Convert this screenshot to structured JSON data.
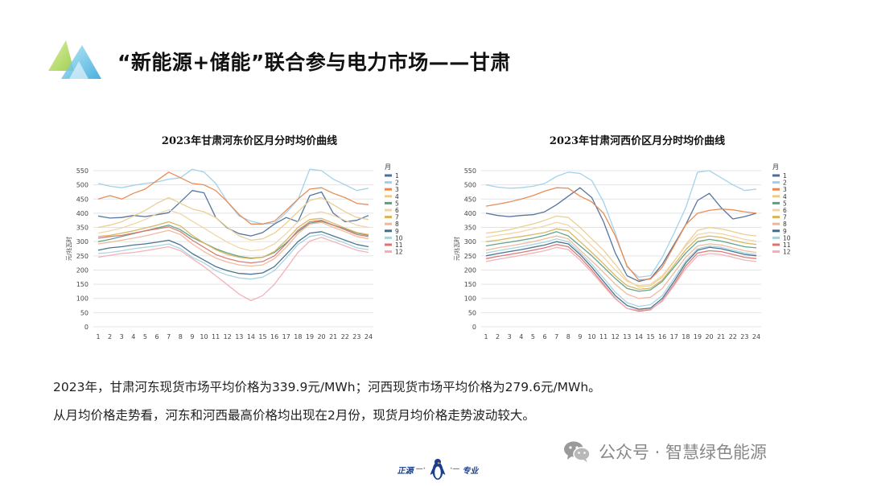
{
  "title": "“新能源+储能”联合参与电力市场——甘肃",
  "colors": {
    "logo_green": "#b6d96a",
    "logo_blue": "#4fb5e0",
    "logo_cyan": "#8fd4ee",
    "brand_blue": "#1a3f8c",
    "grid": "#e4e4e4"
  },
  "legend_title": "月",
  "series_colors": [
    "#4e6e9a",
    "#9fd0e8",
    "#e8874f",
    "#e9cd8c",
    "#5a9e86",
    "#f1d3a4",
    "#d9b35a",
    "#efb79a",
    "#3f6f8c",
    "#a7d3db",
    "#d8766f",
    "#f2aeb5"
  ],
  "summary": {
    "line1": "2023年，甘肃河东现货市场平均价格为339.9元/MWh；河西现货市场平均价格为279.6元/MWh。",
    "line2": "从月均价格走势看，河东和河西最高价格均出现在2月份，现货月均价格走势波动较大。"
  },
  "watermark": {
    "text": "公众号 · 智慧绿色能源",
    "icon": "wechat-icon"
  },
  "footer": {
    "left": "正源",
    "right": "专业",
    "icon": "penguin-icon"
  },
  "chart_data": [
    {
      "type": "line",
      "title": "2023年甘肃河东价区月分时均价曲线",
      "ylabel": "元/兆瓦时",
      "xlabel": "",
      "x": [
        1,
        2,
        3,
        4,
        5,
        6,
        7,
        8,
        9,
        10,
        11,
        12,
        13,
        14,
        15,
        16,
        17,
        18,
        19,
        20,
        21,
        22,
        23,
        24
      ],
      "ylim": [
        0,
        550
      ],
      "yticks": [
        0,
        50,
        100,
        150,
        200,
        250,
        300,
        350,
        400,
        450,
        500,
        550
      ],
      "grid": true,
      "legend_position": "right",
      "series": [
        {
          "name": "1",
          "values": [
            390,
            383,
            385,
            392,
            388,
            395,
            402,
            440,
            480,
            472,
            385,
            348,
            328,
            320,
            332,
            362,
            385,
            370,
            462,
            475,
            400,
            370,
            375,
            392
          ]
        },
        {
          "name": "2",
          "values": [
            505,
            495,
            490,
            498,
            505,
            510,
            520,
            525,
            555,
            545,
            505,
            440,
            390,
            372,
            362,
            365,
            402,
            448,
            555,
            550,
            520,
            500,
            480,
            488
          ]
        },
        {
          "name": "3",
          "values": [
            450,
            462,
            450,
            470,
            485,
            515,
            545,
            525,
            505,
            500,
            480,
            440,
            395,
            362,
            362,
            372,
            410,
            450,
            485,
            490,
            470,
            455,
            435,
            430
          ]
        },
        {
          "name": "4",
          "values": [
            350,
            358,
            370,
            390,
            410,
            435,
            455,
            435,
            415,
            405,
            385,
            350,
            320,
            305,
            310,
            330,
            365,
            405,
            445,
            455,
            430,
            405,
            385,
            378
          ]
        },
        {
          "name": "5",
          "values": [
            300,
            308,
            318,
            328,
            338,
            348,
            358,
            342,
            315,
            295,
            275,
            260,
            248,
            242,
            245,
            262,
            295,
            335,
            365,
            372,
            358,
            345,
            330,
            322
          ]
        },
        {
          "name": "6",
          "values": [
            330,
            338,
            348,
            362,
            378,
            398,
            412,
            398,
            372,
            348,
            322,
            298,
            278,
            268,
            272,
            292,
            328,
            370,
            398,
            405,
            392,
            375,
            358,
            350
          ]
        },
        {
          "name": "7",
          "values": [
            318,
            322,
            330,
            338,
            348,
            358,
            370,
            355,
            322,
            295,
            272,
            255,
            245,
            240,
            245,
            265,
            305,
            350,
            378,
            382,
            365,
            348,
            332,
            325
          ]
        },
        {
          "name": "8",
          "values": [
            292,
            298,
            305,
            312,
            320,
            330,
            340,
            325,
            292,
            265,
            242,
            228,
            218,
            214,
            218,
            240,
            280,
            328,
            362,
            368,
            350,
            335,
            318,
            310
          ]
        },
        {
          "name": "9",
          "values": [
            270,
            278,
            282,
            288,
            292,
            298,
            305,
            288,
            258,
            235,
            212,
            198,
            188,
            185,
            190,
            212,
            255,
            300,
            330,
            335,
            320,
            305,
            290,
            282
          ]
        },
        {
          "name": "10",
          "values": [
            258,
            262,
            268,
            275,
            280,
            285,
            292,
            275,
            245,
            225,
            198,
            182,
            172,
            168,
            175,
            198,
            242,
            290,
            318,
            325,
            310,
            295,
            278,
            272
          ]
        },
        {
          "name": "11",
          "values": [
            312,
            318,
            322,
            330,
            338,
            345,
            352,
            335,
            305,
            280,
            255,
            240,
            230,
            225,
            230,
            250,
            292,
            340,
            370,
            375,
            358,
            342,
            325,
            318
          ]
        },
        {
          "name": "12",
          "values": [
            245,
            252,
            258,
            262,
            268,
            275,
            282,
            268,
            240,
            212,
            180,
            148,
            115,
            92,
            110,
            150,
            205,
            262,
            302,
            315,
            300,
            285,
            270,
            262
          ]
        }
      ]
    },
    {
      "type": "line",
      "title": "2023年甘肃河西价区月分时均价曲线",
      "ylabel": "元/兆瓦时",
      "xlabel": "",
      "x": [
        1,
        2,
        3,
        4,
        5,
        6,
        7,
        8,
        9,
        10,
        11,
        12,
        13,
        14,
        15,
        16,
        17,
        18,
        19,
        20,
        21,
        22,
        23,
        24
      ],
      "ylim": [
        0,
        550
      ],
      "yticks": [
        0,
        50,
        100,
        150,
        200,
        250,
        300,
        350,
        400,
        450,
        500,
        550
      ],
      "grid": true,
      "legend_position": "right",
      "series": [
        {
          "name": "1",
          "values": [
            400,
            392,
            388,
            392,
            395,
            405,
            430,
            460,
            490,
            455,
            370,
            260,
            180,
            160,
            170,
            220,
            290,
            360,
            445,
            470,
            420,
            380,
            388,
            400
          ]
        },
        {
          "name": "2",
          "values": [
            500,
            492,
            488,
            490,
            495,
            505,
            530,
            545,
            540,
            515,
            440,
            330,
            210,
            175,
            180,
            245,
            330,
            420,
            545,
            550,
            525,
            500,
            480,
            485
          ]
        },
        {
          "name": "3",
          "values": [
            425,
            432,
            440,
            450,
            462,
            478,
            490,
            488,
            460,
            440,
            400,
            320,
            215,
            165,
            168,
            210,
            285,
            360,
            400,
            410,
            415,
            412,
            405,
            400
          ]
        },
        {
          "name": "4",
          "values": [
            330,
            335,
            342,
            352,
            362,
            375,
            390,
            385,
            350,
            310,
            270,
            220,
            165,
            140,
            145,
            175,
            230,
            290,
            340,
            350,
            345,
            335,
            325,
            320
          ]
        },
        {
          "name": "5",
          "values": [
            285,
            292,
            298,
            305,
            312,
            322,
            335,
            320,
            285,
            250,
            210,
            170,
            135,
            125,
            130,
            160,
            210,
            260,
            300,
            308,
            302,
            292,
            282,
            278
          ]
        },
        {
          "name": "6",
          "values": [
            315,
            322,
            328,
            335,
            345,
            355,
            368,
            358,
            325,
            285,
            245,
            200,
            160,
            145,
            150,
            180,
            232,
            285,
            325,
            332,
            328,
            318,
            308,
            302
          ]
        },
        {
          "name": "7",
          "values": [
            300,
            305,
            312,
            318,
            325,
            332,
            345,
            338,
            300,
            262,
            222,
            180,
            145,
            132,
            136,
            165,
            218,
            272,
            312,
            320,
            315,
            305,
            295,
            290
          ]
        },
        {
          "name": "8",
          "values": [
            270,
            278,
            285,
            292,
            300,
            310,
            320,
            310,
            270,
            232,
            192,
            150,
            115,
            100,
            104,
            135,
            190,
            245,
            285,
            292,
            288,
            278,
            268,
            262
          ]
        },
        {
          "name": "9",
          "values": [
            250,
            258,
            265,
            272,
            280,
            288,
            300,
            292,
            255,
            210,
            160,
            110,
            75,
            62,
            66,
            100,
            160,
            225,
            270,
            280,
            275,
            265,
            255,
            250
          ]
        },
        {
          "name": "10",
          "values": [
            260,
            268,
            275,
            282,
            290,
            298,
            310,
            300,
            262,
            220,
            172,
            122,
            85,
            72,
            78,
            110,
            170,
            232,
            275,
            285,
            280,
            270,
            260,
            255
          ]
        },
        {
          "name": "11",
          "values": [
            240,
            248,
            255,
            262,
            270,
            278,
            290,
            282,
            245,
            200,
            150,
            100,
            65,
            55,
            60,
            92,
            150,
            215,
            260,
            268,
            265,
            255,
            245,
            240
          ]
        },
        {
          "name": "12",
          "values": [
            230,
            238,
            245,
            252,
            260,
            268,
            280,
            272,
            235,
            192,
            145,
            98,
            65,
            58,
            62,
            90,
            145,
            205,
            250,
            258,
            255,
            245,
            235,
            230
          ]
        }
      ]
    }
  ]
}
